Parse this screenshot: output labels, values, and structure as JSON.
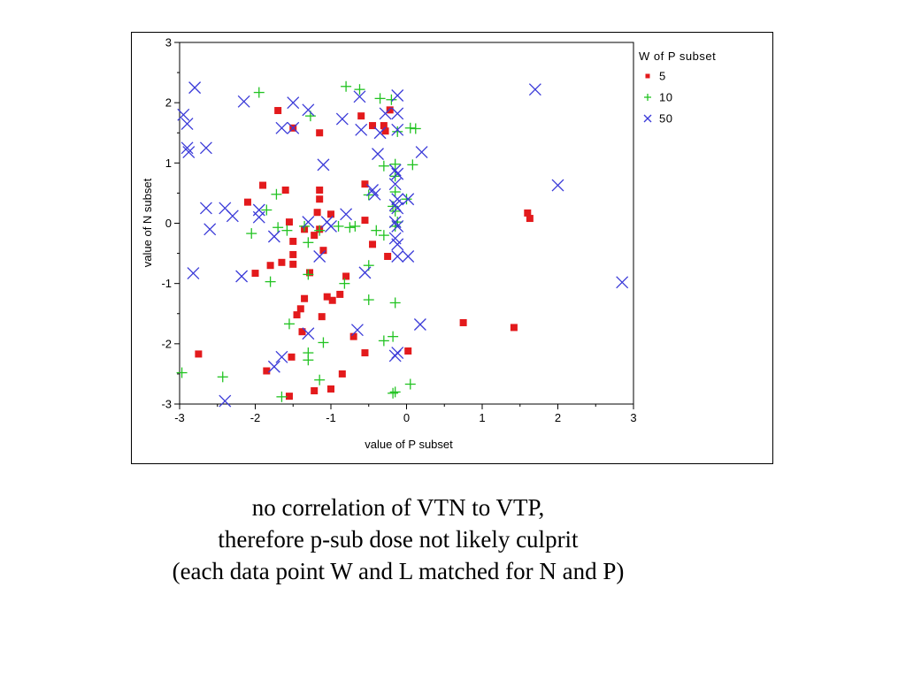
{
  "chart_data": {
    "type": "scatter",
    "xlabel": "value of P subset",
    "ylabel": "value of N subset",
    "xlim": [
      -3,
      3
    ],
    "ylim": [
      -3,
      3
    ],
    "xticks": [
      -3,
      -2,
      -1,
      0,
      1,
      2,
      3
    ],
    "yticks": [
      -3,
      -2,
      -1,
      0,
      1,
      2,
      3
    ],
    "grid": false,
    "legend": {
      "title": "W of P subset",
      "placement": "top-right-outside"
    },
    "series": [
      {
        "name": "5",
        "marker": "square",
        "color": "#e31a1c",
        "points": [
          [
            -1.7,
            1.87
          ],
          [
            -1.5,
            1.58
          ],
          [
            -1.15,
            1.5
          ],
          [
            -0.6,
            1.78
          ],
          [
            -0.45,
            1.62
          ],
          [
            -0.3,
            1.62
          ],
          [
            -0.28,
            1.53
          ],
          [
            -0.22,
            1.88
          ],
          [
            -1.9,
            0.63
          ],
          [
            -1.6,
            0.55
          ],
          [
            -1.15,
            0.55
          ],
          [
            -0.55,
            0.65
          ],
          [
            -1.15,
            0.4
          ],
          [
            -2.1,
            0.35
          ],
          [
            -1.55,
            0.02
          ],
          [
            -1.35,
            -0.1
          ],
          [
            -1.22,
            -0.2
          ],
          [
            -1.15,
            -0.1
          ],
          [
            -1.18,
            0.18
          ],
          [
            -1.0,
            0.15
          ],
          [
            -0.55,
            0.05
          ],
          [
            -0.45,
            -0.35
          ],
          [
            -1.5,
            -0.3
          ],
          [
            -1.1,
            -0.45
          ],
          [
            -0.25,
            -0.55
          ],
          [
            -1.5,
            -0.52
          ],
          [
            -1.65,
            -0.65
          ],
          [
            -1.5,
            -0.68
          ],
          [
            -1.8,
            -0.7
          ],
          [
            -2.0,
            -0.83
          ],
          [
            -1.28,
            -0.82
          ],
          [
            -0.8,
            -0.88
          ],
          [
            -1.35,
            -1.25
          ],
          [
            -1.05,
            -1.22
          ],
          [
            -0.98,
            -1.28
          ],
          [
            -0.88,
            -1.18
          ],
          [
            -1.4,
            -1.42
          ],
          [
            -1.45,
            -1.52
          ],
          [
            -1.12,
            -1.55
          ],
          [
            -1.38,
            -1.8
          ],
          [
            -0.7,
            -1.88
          ],
          [
            -0.55,
            -2.15
          ],
          [
            0.02,
            -2.12
          ],
          [
            -1.52,
            -2.22
          ],
          [
            -1.85,
            -2.45
          ],
          [
            -0.85,
            -2.5
          ],
          [
            -1.22,
            -2.78
          ],
          [
            -1.0,
            -2.75
          ],
          [
            -1.55,
            -2.87
          ],
          [
            -2.75,
            -2.17
          ],
          [
            0.75,
            -1.65
          ],
          [
            1.42,
            -1.73
          ],
          [
            1.6,
            0.17
          ],
          [
            1.63,
            0.08
          ]
        ]
      },
      {
        "name": "10",
        "marker": "plus",
        "color": "#22c322",
        "points": [
          [
            -1.95,
            2.17
          ],
          [
            -0.8,
            2.27
          ],
          [
            -0.62,
            2.22
          ],
          [
            -0.35,
            2.07
          ],
          [
            -0.2,
            2.05
          ],
          [
            -1.27,
            1.78
          ],
          [
            -0.12,
            1.52
          ],
          [
            0.05,
            1.58
          ],
          [
            0.12,
            1.57
          ],
          [
            -0.3,
            0.95
          ],
          [
            -0.15,
            0.98
          ],
          [
            0.08,
            0.97
          ],
          [
            -0.15,
            0.78
          ],
          [
            -1.72,
            0.48
          ],
          [
            -0.5,
            0.47
          ],
          [
            -0.15,
            0.52
          ],
          [
            0.0,
            0.4
          ],
          [
            -0.18,
            0.28
          ],
          [
            -0.15,
            0.2
          ],
          [
            -1.85,
            0.22
          ],
          [
            -2.05,
            -0.17
          ],
          [
            -1.7,
            -0.07
          ],
          [
            -1.58,
            -0.12
          ],
          [
            -1.35,
            -0.05
          ],
          [
            -1.15,
            -0.12
          ],
          [
            -1.3,
            -0.32
          ],
          [
            -0.9,
            -0.05
          ],
          [
            -0.75,
            -0.07
          ],
          [
            -0.68,
            -0.05
          ],
          [
            -0.4,
            -0.12
          ],
          [
            -0.3,
            -0.2
          ],
          [
            -0.15,
            -0.05
          ],
          [
            -0.12,
            0.02
          ],
          [
            -1.8,
            -0.97
          ],
          [
            -1.3,
            -0.85
          ],
          [
            -0.82,
            -1.0
          ],
          [
            -0.5,
            -0.7
          ],
          [
            -0.5,
            -1.27
          ],
          [
            -0.15,
            -1.32
          ],
          [
            -1.55,
            -1.67
          ],
          [
            -1.1,
            -1.98
          ],
          [
            -0.3,
            -1.95
          ],
          [
            -0.18,
            -1.88
          ],
          [
            -1.3,
            -2.15
          ],
          [
            -1.3,
            -2.27
          ],
          [
            -1.15,
            -2.6
          ],
          [
            -1.65,
            -2.88
          ],
          [
            -0.15,
            -2.8
          ],
          [
            -0.18,
            -2.82
          ],
          [
            0.05,
            -2.67
          ],
          [
            -2.43,
            -2.55
          ],
          [
            -2.97,
            -2.48
          ]
        ]
      },
      {
        "name": "50",
        "marker": "x",
        "color": "#3a3ad8",
        "points": [
          [
            -2.8,
            2.25
          ],
          [
            -2.15,
            2.02
          ],
          [
            -1.5,
            2.0
          ],
          [
            -1.3,
            1.88
          ],
          [
            -0.62,
            2.1
          ],
          [
            -0.12,
            2.12
          ],
          [
            1.7,
            2.22
          ],
          [
            -2.95,
            1.8
          ],
          [
            -2.9,
            1.65
          ],
          [
            -1.65,
            1.58
          ],
          [
            -1.5,
            1.58
          ],
          [
            -0.85,
            1.73
          ],
          [
            -0.6,
            1.55
          ],
          [
            -0.35,
            1.5
          ],
          [
            -0.12,
            1.82
          ],
          [
            -0.28,
            1.82
          ],
          [
            -0.12,
            1.55
          ],
          [
            -2.9,
            1.25
          ],
          [
            -2.88,
            1.18
          ],
          [
            -2.65,
            1.25
          ],
          [
            -1.1,
            0.97
          ],
          [
            0.2,
            1.18
          ],
          [
            -0.38,
            1.15
          ],
          [
            -0.15,
            0.88
          ],
          [
            -0.12,
            0.82
          ],
          [
            -0.15,
            0.65
          ],
          [
            2.0,
            0.63
          ],
          [
            -0.45,
            0.55
          ],
          [
            -0.42,
            0.48
          ],
          [
            -0.12,
            0.4
          ],
          [
            0.02,
            0.4
          ],
          [
            -2.65,
            0.25
          ],
          [
            -2.4,
            0.25
          ],
          [
            -2.3,
            0.12
          ],
          [
            -1.95,
            0.22
          ],
          [
            -1.95,
            0.1
          ],
          [
            -0.8,
            0.15
          ],
          [
            -0.15,
            0.3
          ],
          [
            -0.12,
            0.25
          ],
          [
            -1.3,
            0.02
          ],
          [
            -1.05,
            0.02
          ],
          [
            -1.0,
            -0.05
          ],
          [
            -0.15,
            0.02
          ],
          [
            -0.12,
            -0.05
          ],
          [
            -2.6,
            -0.1
          ],
          [
            -1.75,
            -0.22
          ],
          [
            -0.15,
            -0.25
          ],
          [
            -0.12,
            -0.35
          ],
          [
            -1.15,
            -0.55
          ],
          [
            -0.55,
            -0.82
          ],
          [
            -0.12,
            -0.55
          ],
          [
            0.02,
            -0.55
          ],
          [
            -2.82,
            -0.83
          ],
          [
            -2.18,
            -0.88
          ],
          [
            2.85,
            -0.98
          ],
          [
            -1.3,
            -1.83
          ],
          [
            -0.65,
            -1.77
          ],
          [
            0.18,
            -1.68
          ],
          [
            -0.15,
            -2.2
          ],
          [
            -0.12,
            -2.15
          ],
          [
            -1.65,
            -2.22
          ],
          [
            -1.75,
            -2.38
          ],
          [
            -2.4,
            -2.95
          ]
        ]
      }
    ]
  },
  "caption": {
    "line1": "no correlation of VTN to VTP,",
    "line2": "therefore p-sub dose not likely culprit",
    "line3": "(each data point W and L matched for N and P)"
  }
}
